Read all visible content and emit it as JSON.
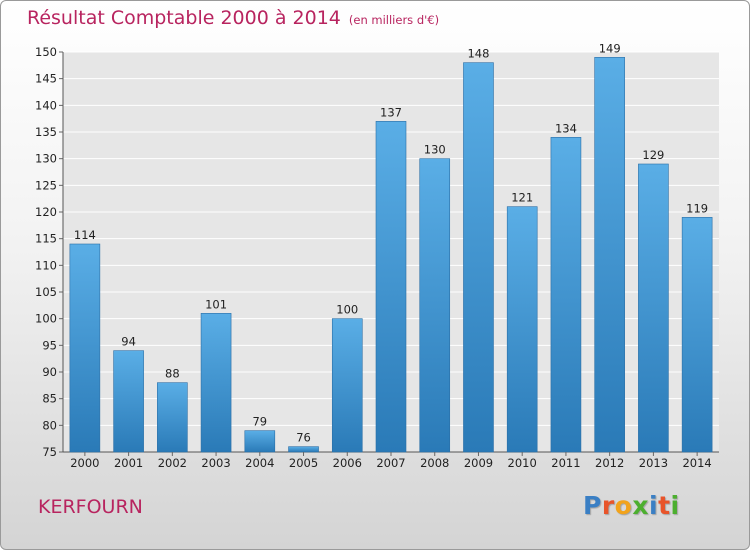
{
  "header": {
    "title": "Résultat Comptable 2000 à 2014",
    "unit": "(en milliers d'€)"
  },
  "footer": {
    "location": "KERFOURN",
    "logo": "Proxiti"
  },
  "colors": {
    "title": "#b8245f",
    "bar_top": "#5aaee6",
    "bar_bottom": "#2a7ab7"
  },
  "chart_data": {
    "type": "bar",
    "title": "Résultat Comptable 2000 à 2014",
    "xlabel": "",
    "ylabel": "",
    "categories": [
      "2000",
      "2001",
      "2002",
      "2003",
      "2004",
      "2005",
      "2006",
      "2007",
      "2008",
      "2009",
      "2010",
      "2011",
      "2012",
      "2013",
      "2014"
    ],
    "values": [
      114,
      94,
      88,
      101,
      79,
      76,
      100,
      137,
      130,
      148,
      121,
      134,
      149,
      129,
      119
    ],
    "ylim": [
      75,
      150
    ],
    "yticks": [
      75,
      80,
      85,
      90,
      95,
      100,
      105,
      110,
      115,
      120,
      125,
      130,
      135,
      140,
      145,
      150
    ],
    "grid": true
  }
}
